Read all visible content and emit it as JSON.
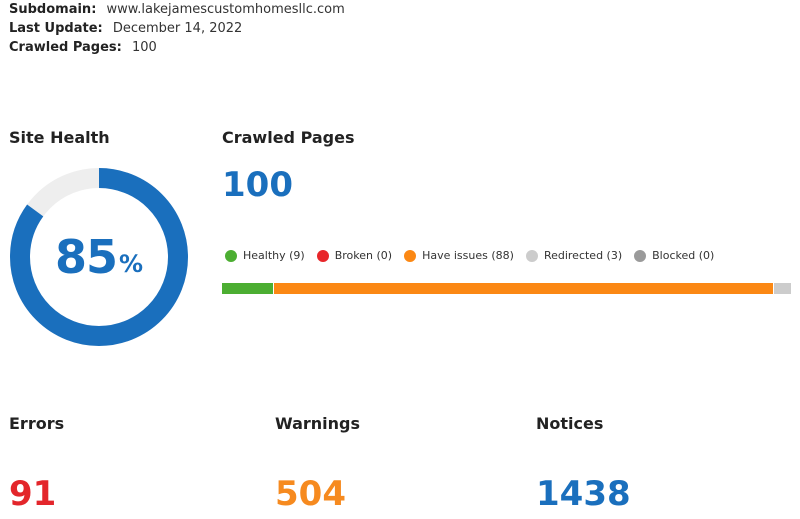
{
  "meta": {
    "subdomain_label": "Subdomain:",
    "subdomain_value": "www.lakejamescustomhomesllc.com",
    "last_update_label": "Last Update:",
    "last_update_value": "December 14, 2022",
    "crawled_pages_label": "Crawled Pages:",
    "crawled_pages_value": "100"
  },
  "site_health": {
    "title": "Site Health",
    "value": "85",
    "unit": "%",
    "percent": 85,
    "color": "#1a6fbd",
    "track_color": "#eeeeee"
  },
  "crawled_pages": {
    "title": "Crawled Pages",
    "count": "100",
    "legend": [
      {
        "label": "Healthy (9)",
        "color": "#4cae32",
        "count": 9
      },
      {
        "label": "Broken (0)",
        "color": "#e8262a",
        "count": 0
      },
      {
        "label": "Have issues (88)",
        "color": "#fb8814",
        "count": 88
      },
      {
        "label": "Redirected (3)",
        "color": "#cccccc",
        "count": 3
      },
      {
        "label": "Blocked (0)",
        "color": "#9a9a9a",
        "count": 0
      }
    ]
  },
  "stats": {
    "errors": {
      "label": "Errors",
      "value": "91",
      "color": "#e3262b"
    },
    "warnings": {
      "label": "Warnings",
      "value": "504",
      "color": "#f68a1f"
    },
    "notices": {
      "label": "Notices",
      "value": "1438",
      "color": "#1a6fbd"
    }
  }
}
